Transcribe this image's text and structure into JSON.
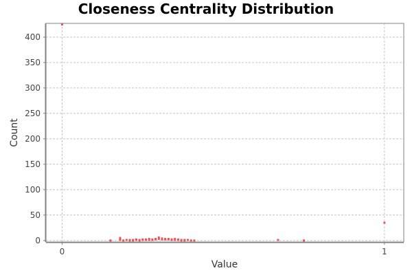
{
  "chart_data": {
    "type": "scatter",
    "title": "Closeness Centrality Distribution",
    "xlabel": "Value",
    "ylabel": "Count",
    "xlim": [
      -0.05,
      1.06
    ],
    "ylim": [
      -3,
      427
    ],
    "x_ticks": [
      0,
      1
    ],
    "y_ticks": [
      0,
      50,
      100,
      150,
      200,
      250,
      300,
      350,
      400
    ],
    "grid": true,
    "legend": "none",
    "colors": {
      "point": "#e8565a",
      "grid": "#c4c4c4",
      "frame": "#808080"
    },
    "series": [
      {
        "points": [
          [
            0.0,
            425
          ],
          [
            1.0,
            35
          ],
          [
            0.15,
            0
          ],
          [
            0.18,
            5
          ],
          [
            0.18,
            3
          ],
          [
            0.18,
            1
          ],
          [
            0.19,
            0
          ],
          [
            0.2,
            1
          ],
          [
            0.21,
            0
          ],
          [
            0.21,
            1
          ],
          [
            0.22,
            1
          ],
          [
            0.22,
            0
          ],
          [
            0.23,
            2
          ],
          [
            0.23,
            1
          ],
          [
            0.24,
            1
          ],
          [
            0.24,
            0
          ],
          [
            0.25,
            2
          ],
          [
            0.25,
            1
          ],
          [
            0.26,
            1
          ],
          [
            0.26,
            2
          ],
          [
            0.27,
            3
          ],
          [
            0.27,
            1
          ],
          [
            0.28,
            2
          ],
          [
            0.28,
            1
          ],
          [
            0.29,
            3
          ],
          [
            0.29,
            2
          ],
          [
            0.3,
            6
          ],
          [
            0.3,
            3
          ],
          [
            0.31,
            2
          ],
          [
            0.31,
            4
          ],
          [
            0.32,
            3
          ],
          [
            0.32,
            2
          ],
          [
            0.33,
            3
          ],
          [
            0.33,
            2
          ],
          [
            0.34,
            2
          ],
          [
            0.34,
            1
          ],
          [
            0.35,
            3
          ],
          [
            0.35,
            1
          ],
          [
            0.36,
            2
          ],
          [
            0.36,
            1
          ],
          [
            0.37,
            1
          ],
          [
            0.37,
            0
          ],
          [
            0.38,
            1
          ],
          [
            0.38,
            0
          ],
          [
            0.39,
            1
          ],
          [
            0.4,
            0
          ],
          [
            0.41,
            0
          ],
          [
            0.67,
            1
          ],
          [
            0.75,
            0
          ]
        ]
      }
    ]
  }
}
